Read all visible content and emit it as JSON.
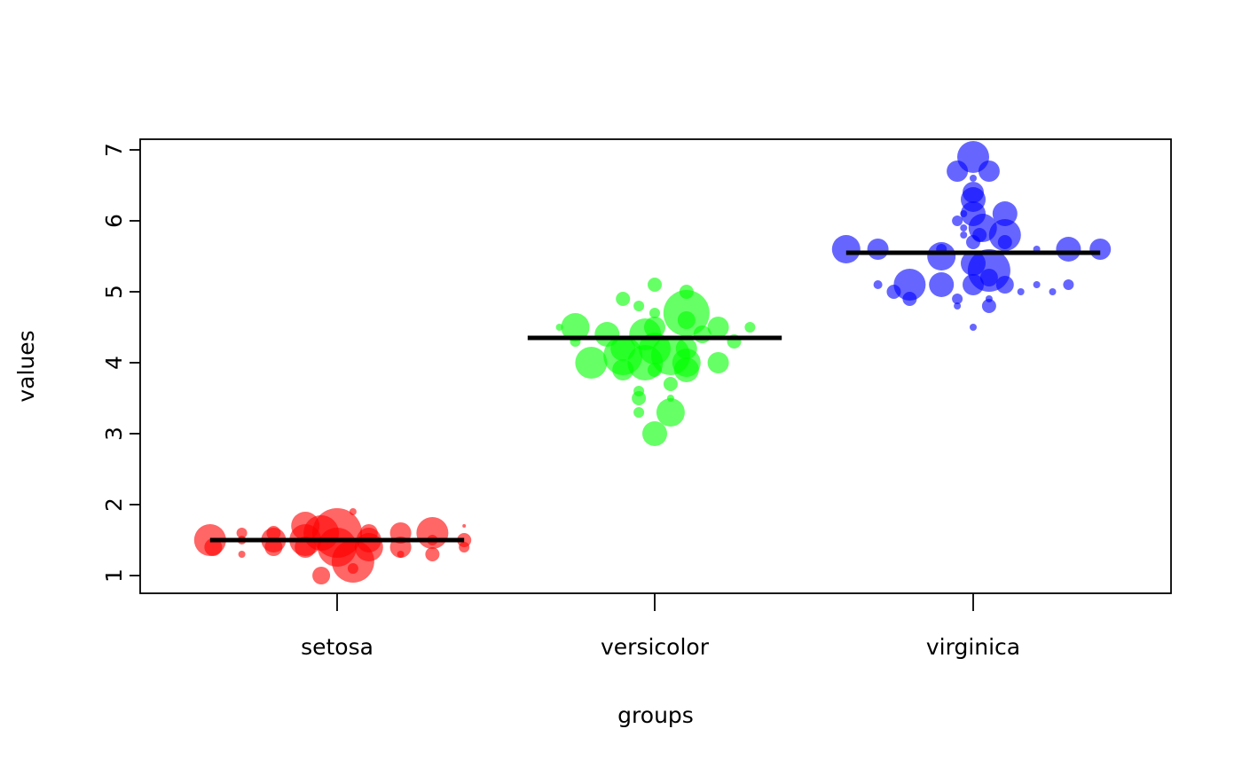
{
  "chart_data": {
    "type": "scatter",
    "title": "",
    "xlabel": "groups",
    "ylabel": "values",
    "ylim": [
      0.75,
      7.15
    ],
    "yticks": [
      1,
      2,
      3,
      4,
      5,
      6,
      7
    ],
    "grid": false,
    "categories": [
      "setosa",
      "versicolor",
      "virginica"
    ],
    "colors": [
      "#ff0000",
      "#00ff00",
      "#0000ff"
    ],
    "medians": [
      1.5,
      4.35,
      5.55
    ],
    "groups": [
      {
        "category": "setosa",
        "points": [
          {
            "x": -0.4,
            "y": 1.5,
            "size": 18
          },
          {
            "x": -0.39,
            "y": 1.4,
            "size": 10
          },
          {
            "x": -0.3,
            "y": 1.6,
            "size": 6
          },
          {
            "x": -0.3,
            "y": 1.5,
            "size": 5
          },
          {
            "x": -0.3,
            "y": 1.3,
            "size": 4
          },
          {
            "x": -0.2,
            "y": 1.5,
            "size": 14
          },
          {
            "x": -0.2,
            "y": 1.4,
            "size": 10
          },
          {
            "x": -0.2,
            "y": 1.6,
            "size": 8
          },
          {
            "x": -0.1,
            "y": 1.7,
            "size": 16
          },
          {
            "x": -0.1,
            "y": 1.5,
            "size": 18
          },
          {
            "x": -0.1,
            "y": 1.4,
            "size": 12
          },
          {
            "x": -0.05,
            "y": 1.0,
            "size": 10
          },
          {
            "x": -0.05,
            "y": 1.6,
            "size": 20
          },
          {
            "x": 0.0,
            "y": 1.6,
            "size": 28
          },
          {
            "x": 0.0,
            "y": 1.4,
            "size": 22
          },
          {
            "x": 0.05,
            "y": 1.2,
            "size": 24
          },
          {
            "x": 0.05,
            "y": 1.9,
            "size": 4
          },
          {
            "x": 0.05,
            "y": 1.1,
            "size": 6
          },
          {
            "x": 0.1,
            "y": 1.5,
            "size": 14
          },
          {
            "x": 0.1,
            "y": 1.4,
            "size": 16
          },
          {
            "x": 0.1,
            "y": 1.6,
            "size": 10
          },
          {
            "x": 0.2,
            "y": 1.4,
            "size": 12
          },
          {
            "x": 0.2,
            "y": 1.6,
            "size": 12
          },
          {
            "x": 0.2,
            "y": 1.3,
            "size": 4
          },
          {
            "x": 0.3,
            "y": 1.6,
            "size": 18
          },
          {
            "x": 0.3,
            "y": 1.3,
            "size": 8
          },
          {
            "x": 0.3,
            "y": 1.5,
            "size": 6
          },
          {
            "x": 0.4,
            "y": 1.5,
            "size": 8
          },
          {
            "x": 0.4,
            "y": 1.4,
            "size": 6
          },
          {
            "x": 0.4,
            "y": 1.7,
            "size": 2
          }
        ]
      },
      {
        "category": "versicolor",
        "points": [
          {
            "x": -0.3,
            "y": 4.5,
            "size": 4
          },
          {
            "x": -0.25,
            "y": 4.3,
            "size": 6
          },
          {
            "x": -0.25,
            "y": 4.5,
            "size": 16
          },
          {
            "x": -0.2,
            "y": 4.0,
            "size": 18
          },
          {
            "x": -0.15,
            "y": 4.4,
            "size": 14
          },
          {
            "x": -0.1,
            "y": 4.1,
            "size": 22
          },
          {
            "x": -0.1,
            "y": 3.9,
            "size": 12
          },
          {
            "x": -0.1,
            "y": 4.9,
            "size": 8
          },
          {
            "x": -0.1,
            "y": 4.2,
            "size": 14
          },
          {
            "x": -0.05,
            "y": 3.6,
            "size": 6
          },
          {
            "x": -0.05,
            "y": 3.5,
            "size": 8
          },
          {
            "x": -0.05,
            "y": 3.3,
            "size": 6
          },
          {
            "x": -0.05,
            "y": 4.8,
            "size": 6
          },
          {
            "x": -0.03,
            "y": 4.4,
            "size": 18
          },
          {
            "x": -0.03,
            "y": 4.0,
            "size": 20
          },
          {
            "x": 0.0,
            "y": 3.0,
            "size": 14
          },
          {
            "x": 0.0,
            "y": 5.1,
            "size": 8
          },
          {
            "x": 0.0,
            "y": 4.7,
            "size": 6
          },
          {
            "x": 0.0,
            "y": 4.5,
            "size": 12
          },
          {
            "x": 0.0,
            "y": 4.2,
            "size": 18
          },
          {
            "x": 0.0,
            "y": 3.9,
            "size": 8
          },
          {
            "x": 0.05,
            "y": 4.1,
            "size": 22
          },
          {
            "x": 0.05,
            "y": 3.7,
            "size": 8
          },
          {
            "x": 0.05,
            "y": 3.5,
            "size": 4
          },
          {
            "x": 0.05,
            "y": 3.3,
            "size": 16
          },
          {
            "x": 0.1,
            "y": 4.7,
            "size": 26
          },
          {
            "x": 0.1,
            "y": 4.6,
            "size": 10
          },
          {
            "x": 0.1,
            "y": 5.0,
            "size": 8
          },
          {
            "x": 0.1,
            "y": 4.0,
            "size": 16
          },
          {
            "x": 0.1,
            "y": 4.2,
            "size": 12
          },
          {
            "x": 0.1,
            "y": 3.9,
            "size": 14
          },
          {
            "x": 0.15,
            "y": 4.4,
            "size": 10
          },
          {
            "x": 0.2,
            "y": 4.5,
            "size": 12
          },
          {
            "x": 0.2,
            "y": 4.0,
            "size": 12
          },
          {
            "x": 0.25,
            "y": 4.3,
            "size": 8
          },
          {
            "x": 0.3,
            "y": 4.5,
            "size": 6
          }
        ]
      },
      {
        "category": "virginica",
        "points": [
          {
            "x": -0.4,
            "y": 5.6,
            "size": 16
          },
          {
            "x": -0.3,
            "y": 5.6,
            "size": 12
          },
          {
            "x": -0.3,
            "y": 5.1,
            "size": 5
          },
          {
            "x": -0.25,
            "y": 5.0,
            "size": 8
          },
          {
            "x": -0.2,
            "y": 5.1,
            "size": 18
          },
          {
            "x": -0.2,
            "y": 4.9,
            "size": 8
          },
          {
            "x": -0.1,
            "y": 5.6,
            "size": 6
          },
          {
            "x": -0.1,
            "y": 5.1,
            "size": 14
          },
          {
            "x": -0.1,
            "y": 5.5,
            "size": 16
          },
          {
            "x": -0.05,
            "y": 4.9,
            "size": 6
          },
          {
            "x": -0.05,
            "y": 4.8,
            "size": 4
          },
          {
            "x": -0.05,
            "y": 6.0,
            "size": 6
          },
          {
            "x": -0.05,
            "y": 6.7,
            "size": 12
          },
          {
            "x": -0.03,
            "y": 6.1,
            "size": 4
          },
          {
            "x": -0.03,
            "y": 5.8,
            "size": 4
          },
          {
            "x": -0.03,
            "y": 5.9,
            "size": 4
          },
          {
            "x": 0.0,
            "y": 6.9,
            "size": 18
          },
          {
            "x": 0.0,
            "y": 6.4,
            "size": 12
          },
          {
            "x": 0.0,
            "y": 6.3,
            "size": 14
          },
          {
            "x": 0.0,
            "y": 6.1,
            "size": 14
          },
          {
            "x": 0.0,
            "y": 5.7,
            "size": 8
          },
          {
            "x": 0.0,
            "y": 5.4,
            "size": 14
          },
          {
            "x": 0.0,
            "y": 5.1,
            "size": 12
          },
          {
            "x": 0.0,
            "y": 4.5,
            "size": 4
          },
          {
            "x": 0.0,
            "y": 6.6,
            "size": 4
          },
          {
            "x": 0.02,
            "y": 5.8,
            "size": 8
          },
          {
            "x": 0.03,
            "y": 5.9,
            "size": 16
          },
          {
            "x": 0.05,
            "y": 6.7,
            "size": 12
          },
          {
            "x": 0.05,
            "y": 5.3,
            "size": 24
          },
          {
            "x": 0.05,
            "y": 4.8,
            "size": 8
          },
          {
            "x": 0.05,
            "y": 5.2,
            "size": 10
          },
          {
            "x": 0.05,
            "y": 4.9,
            "size": 4
          },
          {
            "x": 0.1,
            "y": 6.1,
            "size": 14
          },
          {
            "x": 0.1,
            "y": 5.8,
            "size": 18
          },
          {
            "x": 0.1,
            "y": 5.7,
            "size": 8
          },
          {
            "x": 0.1,
            "y": 5.1,
            "size": 10
          },
          {
            "x": 0.15,
            "y": 5.0,
            "size": 4
          },
          {
            "x": 0.2,
            "y": 5.1,
            "size": 4
          },
          {
            "x": 0.2,
            "y": 5.6,
            "size": 4
          },
          {
            "x": 0.25,
            "y": 5.0,
            "size": 4
          },
          {
            "x": 0.3,
            "y": 5.1,
            "size": 6
          },
          {
            "x": 0.3,
            "y": 5.6,
            "size": 14
          },
          {
            "x": 0.4,
            "y": 5.6,
            "size": 12
          }
        ]
      }
    ]
  }
}
